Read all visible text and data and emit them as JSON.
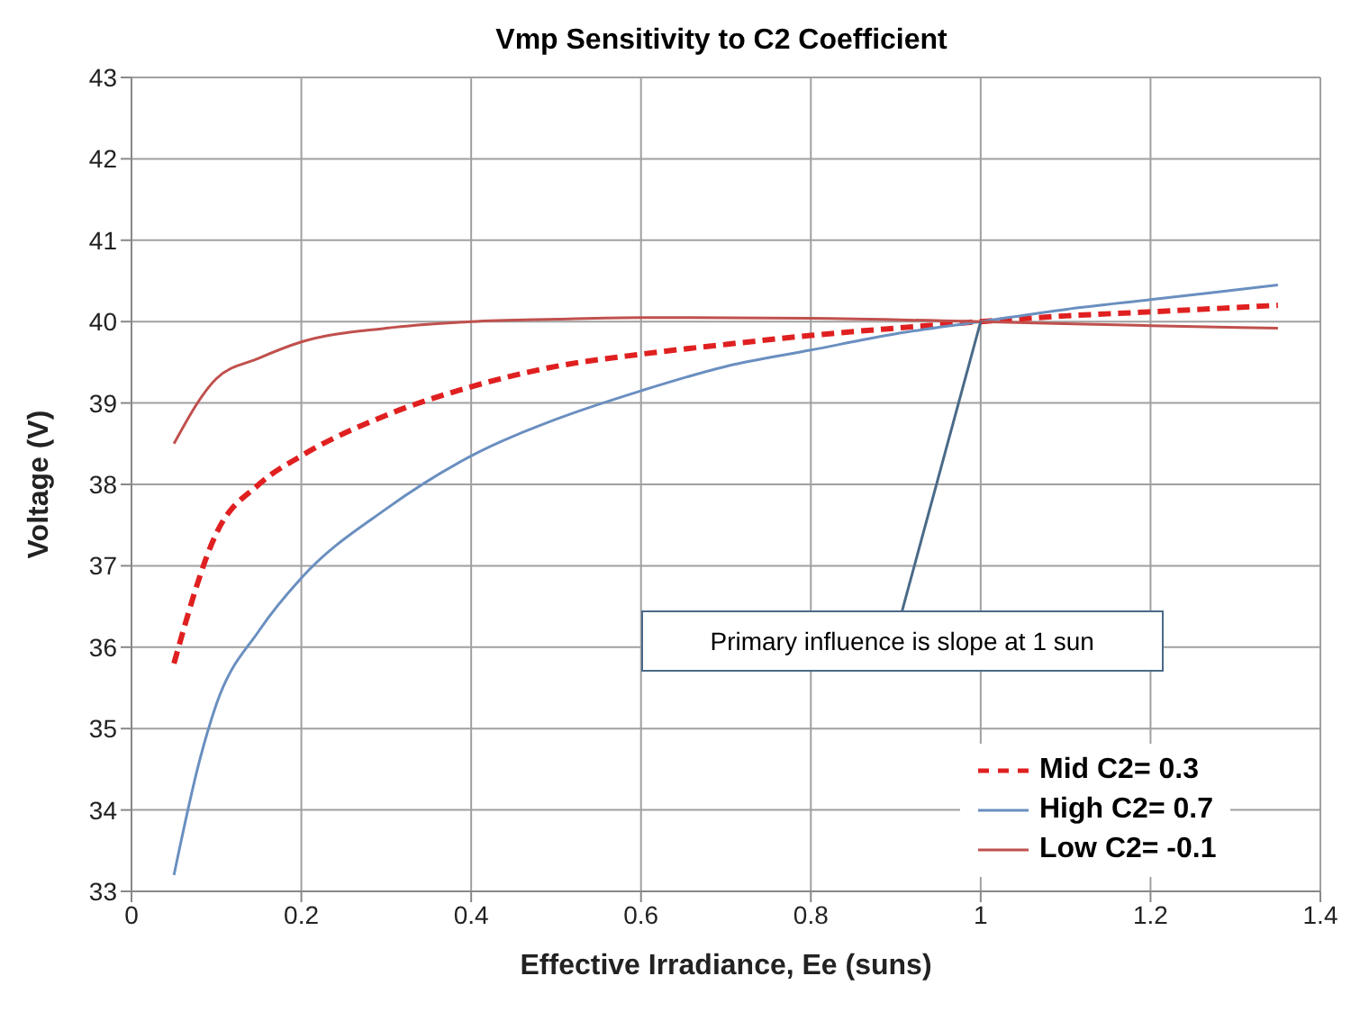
{
  "chart_data": {
    "type": "line",
    "title": "Vmp Sensitivity to C2 Coefficient",
    "xlabel": "Effective Irradiance, Ee (suns)",
    "ylabel": "Voltage (V)",
    "xlim": [
      0,
      1.4
    ],
    "xticks": [
      0,
      0.2,
      0.4,
      0.6,
      0.8,
      1,
      1.2,
      1.4
    ],
    "ylim": [
      33,
      43
    ],
    "yticks": [
      33,
      34,
      35,
      36,
      37,
      38,
      39,
      40,
      41,
      42,
      43
    ],
    "grid": true,
    "legend": "bottom right",
    "marker": "none",
    "annotations": [
      {
        "text": "Primary influence is slope at 1 sun",
        "x": 1,
        "y": 40
      }
    ],
    "series": [
      {
        "name": "Mid C2= 0.3",
        "color": "#e02020",
        "line_style": "dashed",
        "x": [
          0.05,
          0.1,
          0.15,
          0.2,
          0.3,
          0.4,
          0.5,
          0.6,
          0.7,
          0.8,
          0.9,
          1.0,
          1.1,
          1.2,
          1.35
        ],
        "values": [
          35.8,
          37.4,
          38.0,
          38.35,
          38.85,
          39.2,
          39.45,
          39.6,
          39.72,
          39.83,
          39.92,
          40.0,
          40.07,
          40.12,
          40.2
        ]
      },
      {
        "name": "High C2= 0.7",
        "color": "#6a8fc0",
        "line_style": "solid",
        "x": [
          0.05,
          0.08,
          0.1,
          0.15,
          0.2,
          0.3,
          0.4,
          0.5,
          0.6,
          0.7,
          0.8,
          0.9,
          1.0,
          1.1,
          1.2,
          1.35
        ],
        "values": [
          33.2,
          34.6,
          35.3,
          36.2,
          36.85,
          37.7,
          38.35,
          38.8,
          39.15,
          39.45,
          39.65,
          39.85,
          40.0,
          40.15,
          40.27,
          40.45
        ]
      },
      {
        "name": "Low C2= -0.1",
        "color": "#c0504d",
        "line_style": "solid",
        "x": [
          0.05,
          0.1,
          0.15,
          0.2,
          0.3,
          0.4,
          0.5,
          0.6,
          0.8,
          1.0,
          1.2,
          1.35
        ],
        "values": [
          38.5,
          39.3,
          39.55,
          39.75,
          39.92,
          40.0,
          40.03,
          40.05,
          40.04,
          40.0,
          39.95,
          39.92
        ]
      }
    ]
  }
}
